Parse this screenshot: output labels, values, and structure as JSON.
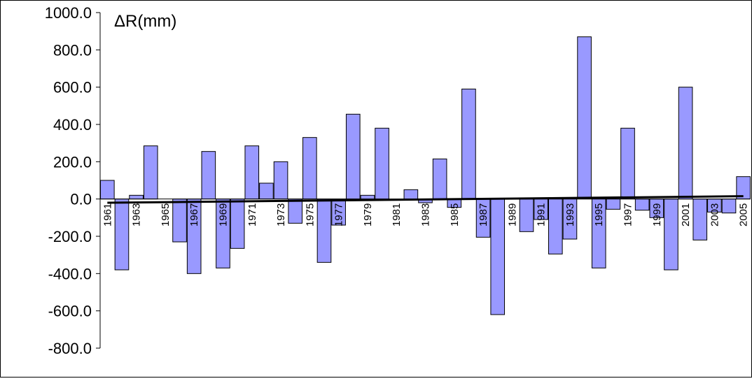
{
  "chart_data": {
    "type": "bar",
    "ylabel": "ΔR(mm)",
    "ylim": [
      -800,
      1000
    ],
    "ytick_step": 200,
    "y_tick_labels": [
      "1000.0",
      "800.0",
      "600.0",
      "400.0",
      "200.0",
      "0.0",
      "-200.0",
      "-400.0",
      "-600.0",
      "-800.0"
    ],
    "categories": [
      "1961",
      "1962",
      "1963",
      "1964",
      "1965",
      "1966",
      "1967",
      "1968",
      "1969",
      "1970",
      "1971",
      "1972",
      "1973",
      "1974",
      "1975",
      "1976",
      "1977",
      "1978",
      "1979",
      "1980",
      "1981",
      "1982",
      "1983",
      "1984",
      "1985",
      "1986",
      "1987",
      "1988",
      "1989",
      "1990",
      "1991",
      "1992",
      "1993",
      "1994",
      "1995",
      "1996",
      "1997",
      "1998",
      "1999",
      "2000",
      "2001",
      "2002",
      "2003",
      "2004",
      "2005"
    ],
    "x_tick_labels": [
      "1961",
      "1963",
      "1965",
      "1967",
      "1969",
      "1971",
      "1973",
      "1975",
      "1977",
      "1979",
      "1981",
      "1983",
      "1985",
      "1987",
      "1989",
      "1991",
      "1993",
      "1995",
      "1997",
      "1999",
      "2001",
      "2003",
      "2005"
    ],
    "values": [
      100,
      -380,
      20,
      285,
      0,
      -230,
      -400,
      255,
      -370,
      -265,
      285,
      85,
      200,
      -130,
      330,
      -340,
      -140,
      455,
      20,
      380,
      0,
      50,
      -20,
      215,
      -45,
      590,
      -205,
      -620,
      0,
      -175,
      -110,
      -295,
      -215,
      870,
      -370,
      -55,
      380,
      -60,
      -100,
      -380,
      600,
      -220,
      -70,
      -75,
      120
    ],
    "bar_color": "#9999ff",
    "bar_edge_color": "#000000",
    "trendline": {
      "start": -20,
      "end": 15,
      "color": "#000000"
    },
    "grid": false,
    "legend": false
  }
}
